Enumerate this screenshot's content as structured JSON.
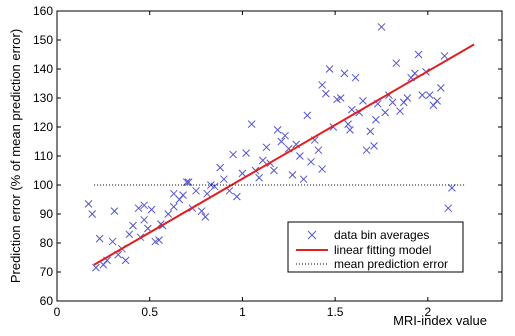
{
  "chart_data": {
    "type": "scatter",
    "title": "",
    "xlabel": "MRI-index value",
    "ylabel": "Prediction error (% of mean prediction error)",
    "xlim": [
      0,
      2.4
    ],
    "ylim": [
      60,
      160
    ],
    "xticks": [
      0,
      0.5,
      1,
      1.5,
      2
    ],
    "xtick_labels": [
      "0",
      "0.5",
      "1",
      "1.5",
      "2"
    ],
    "yticks": [
      60,
      70,
      80,
      90,
      100,
      110,
      120,
      130,
      140,
      150,
      160
    ],
    "ytick_labels": [
      "60",
      "70",
      "80",
      "90",
      "100",
      "110",
      "120",
      "130",
      "140",
      "150",
      "160"
    ],
    "grid": false,
    "legend_position": "bottom-right",
    "legend": [
      {
        "label": "data bin averages",
        "style": "marker-x",
        "color": "#5555cc"
      },
      {
        "label": "linear fitting model",
        "style": "solid-line",
        "color": "#e02020"
      },
      {
        "label": "mean prediction error",
        "style": "dotted-line",
        "color": "#000000"
      }
    ],
    "series": [
      {
        "name": "data bin averages",
        "kind": "scatter",
        "marker": "x",
        "color": "#5555cc",
        "x": [
          0.17,
          0.19,
          0.21,
          0.23,
          0.25,
          0.27,
          0.3,
          0.31,
          0.33,
          0.35,
          0.37,
          0.39,
          0.41,
          0.44,
          0.45,
          0.47,
          0.49,
          0.51,
          0.53,
          0.55,
          0.57,
          0.6,
          0.63,
          0.66,
          0.68,
          0.7,
          0.71,
          0.73,
          0.75,
          0.78,
          0.8,
          0.83,
          0.85,
          0.88,
          0.9,
          0.93,
          0.95,
          0.97,
          1.0,
          1.02,
          1.05,
          1.07,
          1.09,
          1.11,
          1.13,
          1.15,
          1.17,
          1.19,
          1.21,
          1.23,
          1.25,
          1.27,
          1.29,
          1.31,
          1.33,
          1.35,
          1.37,
          1.39,
          1.41,
          1.43,
          1.45,
          1.47,
          1.49,
          1.51,
          1.53,
          1.55,
          1.57,
          1.59,
          1.61,
          1.63,
          1.65,
          1.67,
          1.69,
          1.71,
          1.73,
          1.75,
          1.77,
          1.79,
          1.81,
          1.83,
          1.85,
          1.87,
          1.89,
          1.91,
          1.93,
          1.95,
          1.97,
          1.99,
          2.01,
          2.03,
          2.05,
          2.07,
          2.09,
          2.11,
          2.13,
          1.72,
          1.58,
          1.43,
          0.63,
          0.47,
          0.56,
          0.81
        ],
        "y": [
          93.5,
          90,
          71.5,
          81.5,
          72.5,
          74,
          80.5,
          91,
          76,
          78,
          74,
          83,
          86,
          92,
          82,
          93,
          85,
          91.5,
          80.5,
          81,
          86,
          90,
          92.5,
          95,
          96.5,
          101,
          101,
          92,
          98,
          91,
          89,
          100,
          99.5,
          106,
          102,
          98,
          110.5,
          96,
          104,
          111,
          121,
          105,
          102.5,
          108.5,
          113,
          107.5,
          105,
          119,
          115,
          117,
          112.5,
          103.5,
          114,
          110,
          102,
          124,
          108,
          115.5,
          112,
          105.5,
          131.5,
          140,
          120,
          129.5,
          130,
          138.5,
          121,
          126,
          137,
          125,
          129,
          112,
          118.5,
          113.5,
          128,
          154.5,
          125,
          131,
          128.5,
          142,
          125.5,
          128.5,
          130,
          137,
          138.5,
          145,
          131,
          139,
          131,
          127.5,
          129,
          133.5,
          144.5,
          92,
          99,
          122.5,
          119,
          134.5,
          97,
          88,
          86.5,
          97
        ]
      },
      {
        "name": "linear fitting model",
        "kind": "line",
        "color": "#e02020",
        "x": [
          0.2,
          2.25
        ],
        "y": [
          72.5,
          148.5
        ]
      },
      {
        "name": "mean prediction error",
        "kind": "line",
        "dotted": true,
        "color": "#000000",
        "x": [
          0.2,
          2.2
        ],
        "y": [
          100,
          100
        ]
      }
    ]
  }
}
